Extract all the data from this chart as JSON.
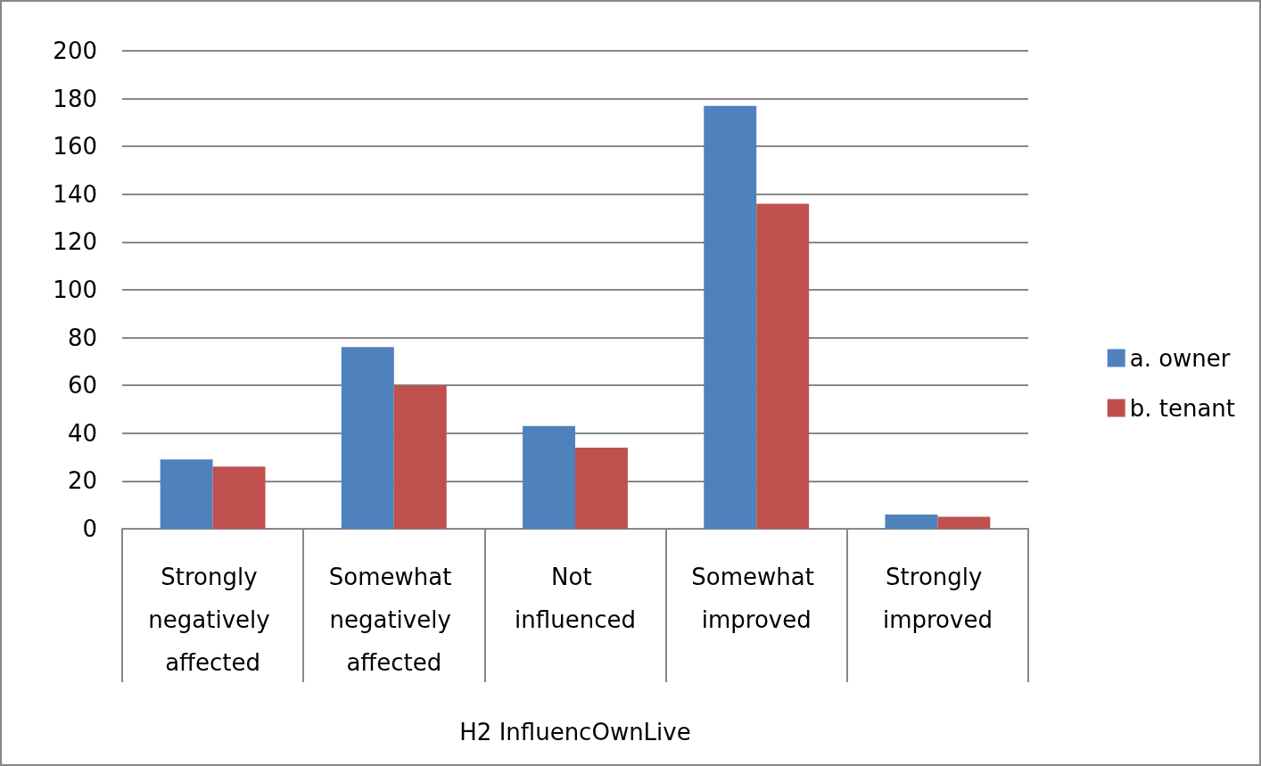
{
  "chart_data": {
    "type": "bar",
    "xlabel": "H2 InfluencOwnLive",
    "categories": [
      "Strongly negatively affected",
      "Somewhat negatively affected",
      "Not influenced",
      "Somewhat improved",
      "Strongly improved"
    ],
    "series": [
      {
        "name": "a. owner",
        "color": "#4f81bd",
        "values": [
          29,
          76,
          43,
          177,
          6
        ]
      },
      {
        "name": "b. tenant",
        "color": "#c0504d",
        "values": [
          26,
          60,
          34,
          136,
          5
        ]
      }
    ],
    "ylim": [
      0,
      200
    ],
    "yticks": [
      0,
      20,
      40,
      60,
      80,
      100,
      120,
      140,
      160,
      180,
      200
    ],
    "grid": "y",
    "legend": "right"
  }
}
